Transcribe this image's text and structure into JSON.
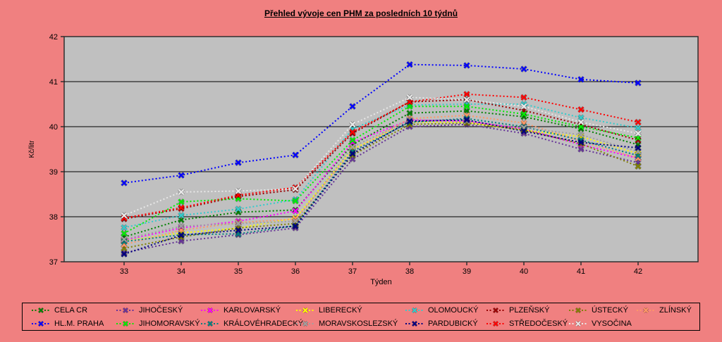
{
  "title": "Přehled vývoje cen PHM za posledních 10 týdnů",
  "colors": {
    "background": "#F08080",
    "plot_background": "#C0C0C0",
    "gridline": "#000000",
    "axis_text": "#000000",
    "legend_border": "#000000"
  },
  "chart_data": {
    "type": "line",
    "title": "Přehled vývoje cen PHM za posledních 10 týdnů",
    "xlabel": "Týden",
    "ylabel": "Kč/litr",
    "x": [
      33,
      34,
      35,
      36,
      37,
      38,
      39,
      40,
      41,
      42
    ],
    "ylim": [
      37,
      42
    ],
    "ytick_step": 1,
    "grid": true,
    "legend_position": "bottom",
    "marker": "x",
    "line_style": "dotted",
    "series": [
      {
        "name": "CELA CR",
        "color": "#008000",
        "values": [
          37.55,
          37.93,
          38.1,
          38.15,
          39.6,
          40.3,
          40.35,
          40.22,
          39.95,
          39.6
        ]
      },
      {
        "name": "JIHOČESKÝ",
        "color": "#663399",
        "values": [
          37.2,
          37.46,
          37.6,
          37.75,
          39.28,
          40.0,
          40.05,
          39.85,
          39.5,
          39.2
        ]
      },
      {
        "name": "KARLOVARSKÝ",
        "color": "#FF00FF",
        "values": [
          37.48,
          37.75,
          37.9,
          38.13,
          39.65,
          40.15,
          40.12,
          39.95,
          39.6,
          39.3
        ]
      },
      {
        "name": "LIBERECKÝ",
        "color": "#FFFF00",
        "values": [
          37.46,
          37.64,
          37.75,
          37.97,
          39.5,
          40.1,
          40.1,
          39.92,
          39.78,
          39.4
        ]
      },
      {
        "name": "OLOMOUCKÝ",
        "color": "#33CCCC",
        "values": [
          37.76,
          38.03,
          38.17,
          38.38,
          39.95,
          40.48,
          40.5,
          40.5,
          40.2,
          39.97
        ]
      },
      {
        "name": "PLZEŇSKÝ",
        "color": "#990000",
        "values": [
          37.95,
          38.18,
          38.45,
          38.6,
          39.85,
          40.55,
          40.6,
          40.36,
          40.05,
          39.7
        ]
      },
      {
        "name": "ÚSTECKÝ",
        "color": "#808000",
        "values": [
          37.3,
          37.55,
          37.75,
          37.85,
          39.37,
          40.05,
          40.08,
          39.93,
          39.62,
          39.12
        ]
      },
      {
        "name": "ZLÍNSKÝ",
        "color": "#FF9966",
        "values": [
          37.38,
          37.7,
          37.87,
          37.95,
          39.46,
          40.18,
          40.25,
          40.08,
          39.68,
          39.3
        ]
      },
      {
        "name": "HL.M. PRAHA",
        "color": "#0000FF",
        "values": [
          38.75,
          38.92,
          39.2,
          39.37,
          40.45,
          41.38,
          41.36,
          41.28,
          41.05,
          40.97
        ]
      },
      {
        "name": "JIHOMORAVSKÝ",
        "color": "#00EE00",
        "values": [
          37.63,
          38.33,
          38.4,
          38.35,
          39.7,
          40.45,
          40.45,
          40.28,
          40.0,
          39.75
        ]
      },
      {
        "name": "KRÁLOVÉHRADECKÝ",
        "color": "#008080",
        "values": [
          37.45,
          37.6,
          37.62,
          37.8,
          39.45,
          40.1,
          40.18,
          40.0,
          39.7,
          39.36
        ]
      },
      {
        "name": "MORAVSKOSLEZSKÝ",
        "color": "#A0A0A0",
        "values": [
          37.5,
          37.79,
          37.85,
          37.9,
          39.55,
          40.15,
          40.12,
          39.98,
          39.82,
          39.45
        ]
      },
      {
        "name": "PARDUBICKÝ",
        "color": "#000080",
        "values": [
          37.17,
          37.59,
          37.7,
          37.79,
          39.4,
          40.12,
          40.15,
          39.9,
          39.65,
          39.53
        ]
      },
      {
        "name": "STŘEDOČESKÝ",
        "color": "#FF0000",
        "values": [
          37.97,
          38.2,
          38.48,
          38.65,
          39.88,
          40.55,
          40.72,
          40.65,
          40.38,
          40.1
        ]
      },
      {
        "name": "VYSOČINA",
        "color": "#E8E8E8",
        "values": [
          38.03,
          38.55,
          38.57,
          38.62,
          40.05,
          40.65,
          40.6,
          40.45,
          40.1,
          39.85
        ]
      }
    ]
  }
}
